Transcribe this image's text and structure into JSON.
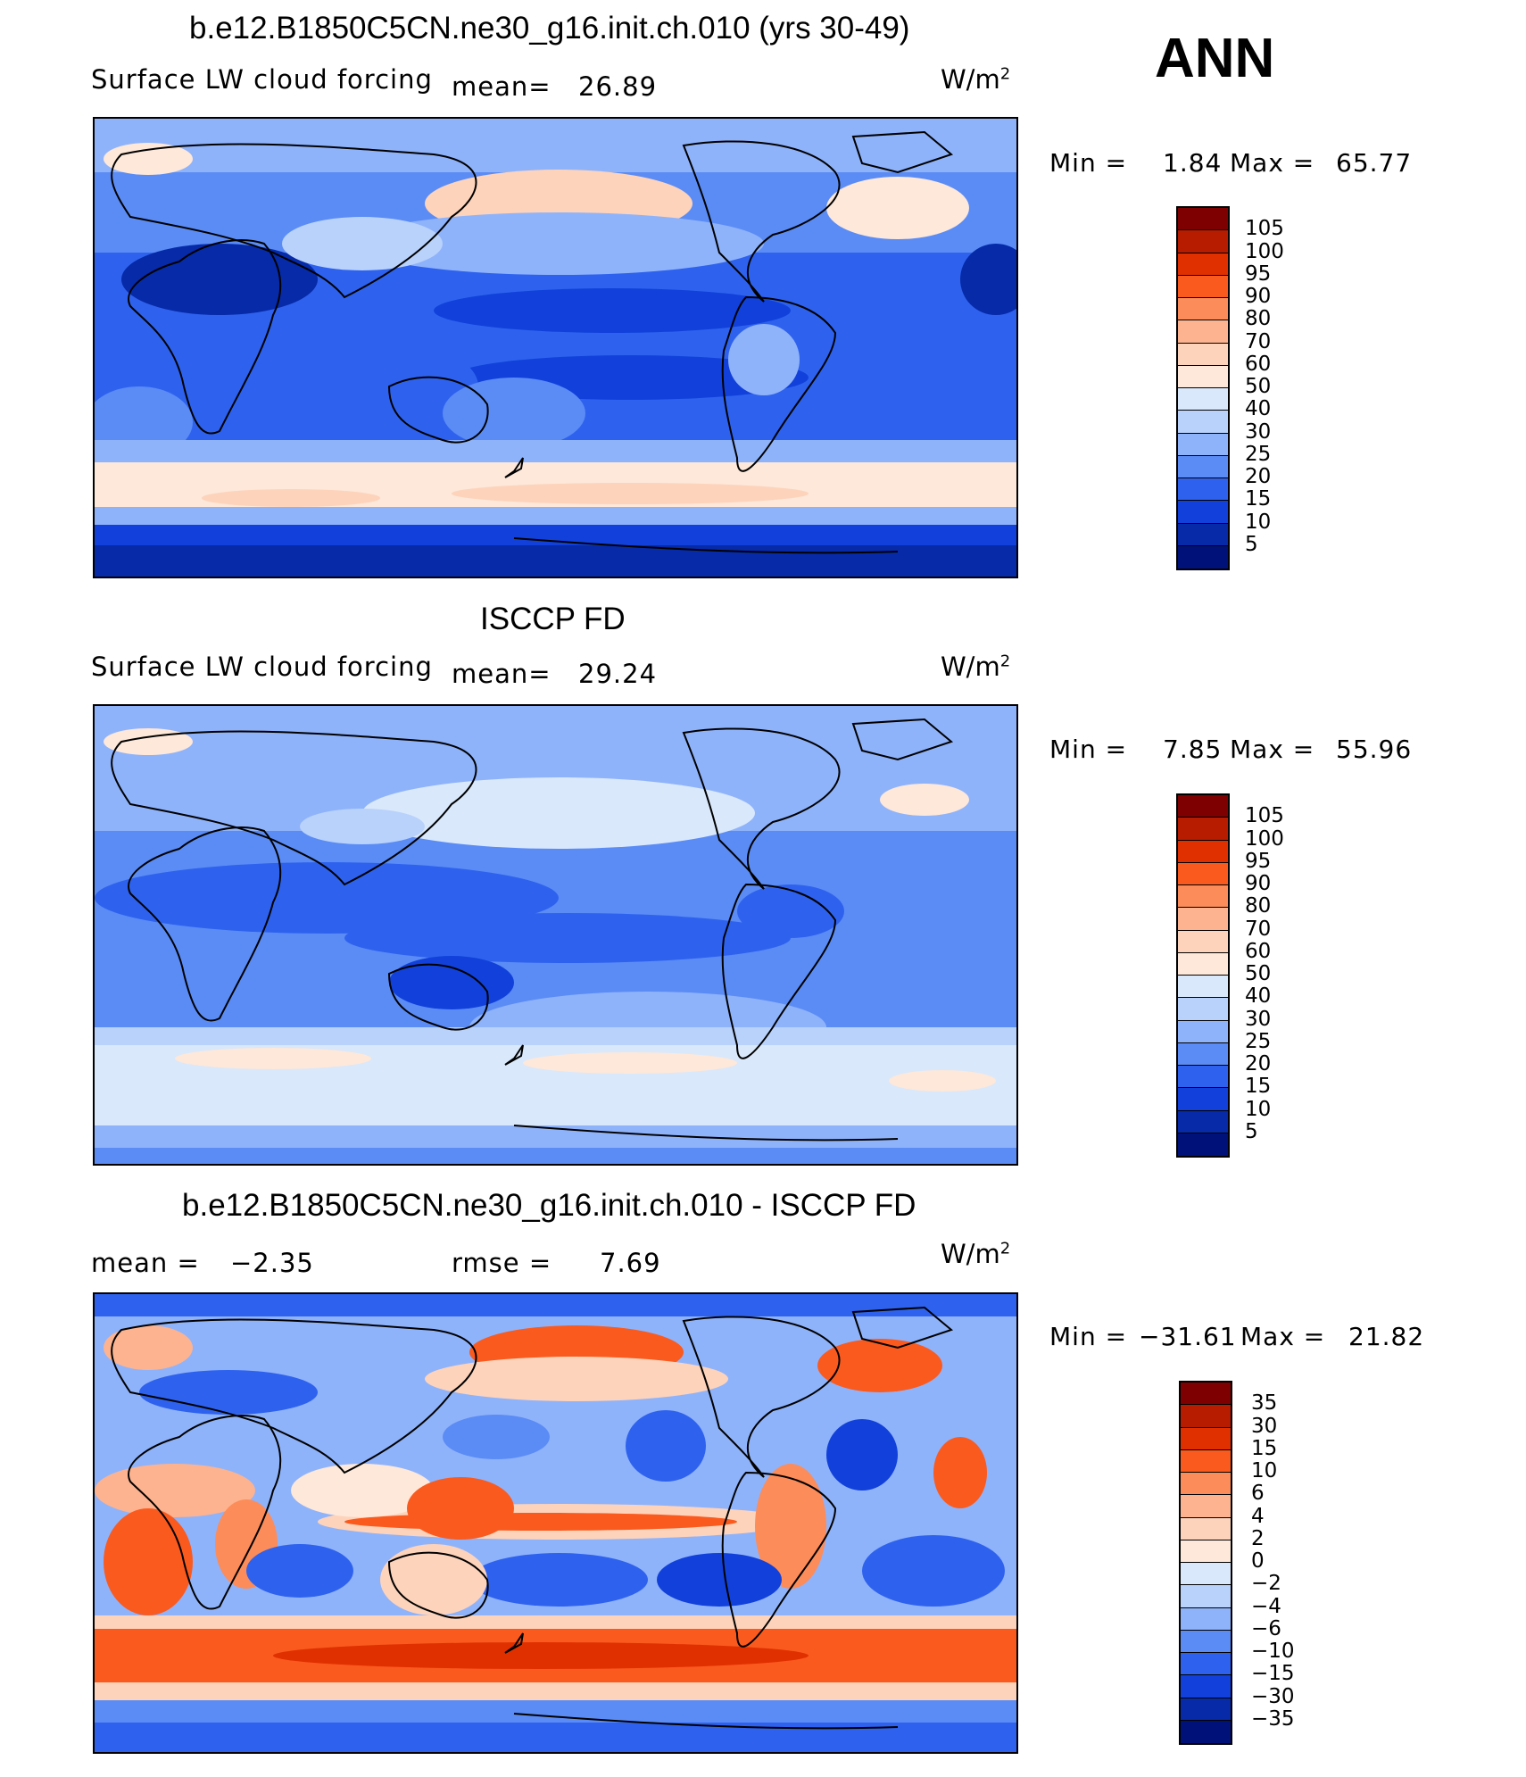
{
  "panel1": {
    "title": "b.e12.B1850C5CN.ne30_g16.init.ch.010 (yrs 30-49)",
    "variable": "Surface LW cloud forcing",
    "mean_label": "mean=",
    "mean_value": "26.89",
    "unit": "W/m",
    "unit_exp": "2",
    "min_label": "Min =",
    "min_value": "1.84",
    "max_label": "Max =",
    "max_value": "65.77",
    "levels": [
      "105",
      "100",
      "95",
      "90",
      "80",
      "70",
      "60",
      "50",
      "40",
      "30",
      "25",
      "20",
      "15",
      "10",
      "5"
    ]
  },
  "season": "ANN",
  "panel2": {
    "title": "ISCCP FD",
    "variable": "Surface LW cloud forcing",
    "mean_label": "mean=",
    "mean_value": "29.24",
    "unit": "W/m",
    "unit_exp": "2",
    "min_label": "Min =",
    "min_value": "7.85",
    "max_label": "Max =",
    "max_value": "55.96",
    "levels": [
      "105",
      "100",
      "95",
      "90",
      "80",
      "70",
      "60",
      "50",
      "40",
      "30",
      "25",
      "20",
      "15",
      "10",
      "5"
    ]
  },
  "panel3": {
    "title": "b.e12.B1850C5CN.ne30_g16.init.ch.010 - ISCCP FD",
    "mean_label": "mean =",
    "mean_value": "−2.35",
    "rmse_label": "rmse =",
    "rmse_value": "7.69",
    "unit": "W/m",
    "unit_exp": "2",
    "min_label": "Min =",
    "min_value": "−31.61",
    "max_label": "Max =",
    "max_value": "21.82",
    "levels": [
      "35",
      "30",
      "15",
      "10",
      "6",
      "4",
      "2",
      "0",
      "−2",
      "−4",
      "−6",
      "−10",
      "−15",
      "−30",
      "−35"
    ]
  },
  "colors": {
    "scale": [
      "#7f0000",
      "#b71c00",
      "#e03000",
      "#fa5a1e",
      "#fc8c59",
      "#fdb38f",
      "#fdd3bb",
      "#fde8da",
      "#d9e8fb",
      "#b9d2fb",
      "#8fb3fa",
      "#5b8cf5",
      "#2e62ee",
      "#1141da",
      "#062aa8",
      "#00127a"
    ],
    "land_outline": "#000000"
  }
}
